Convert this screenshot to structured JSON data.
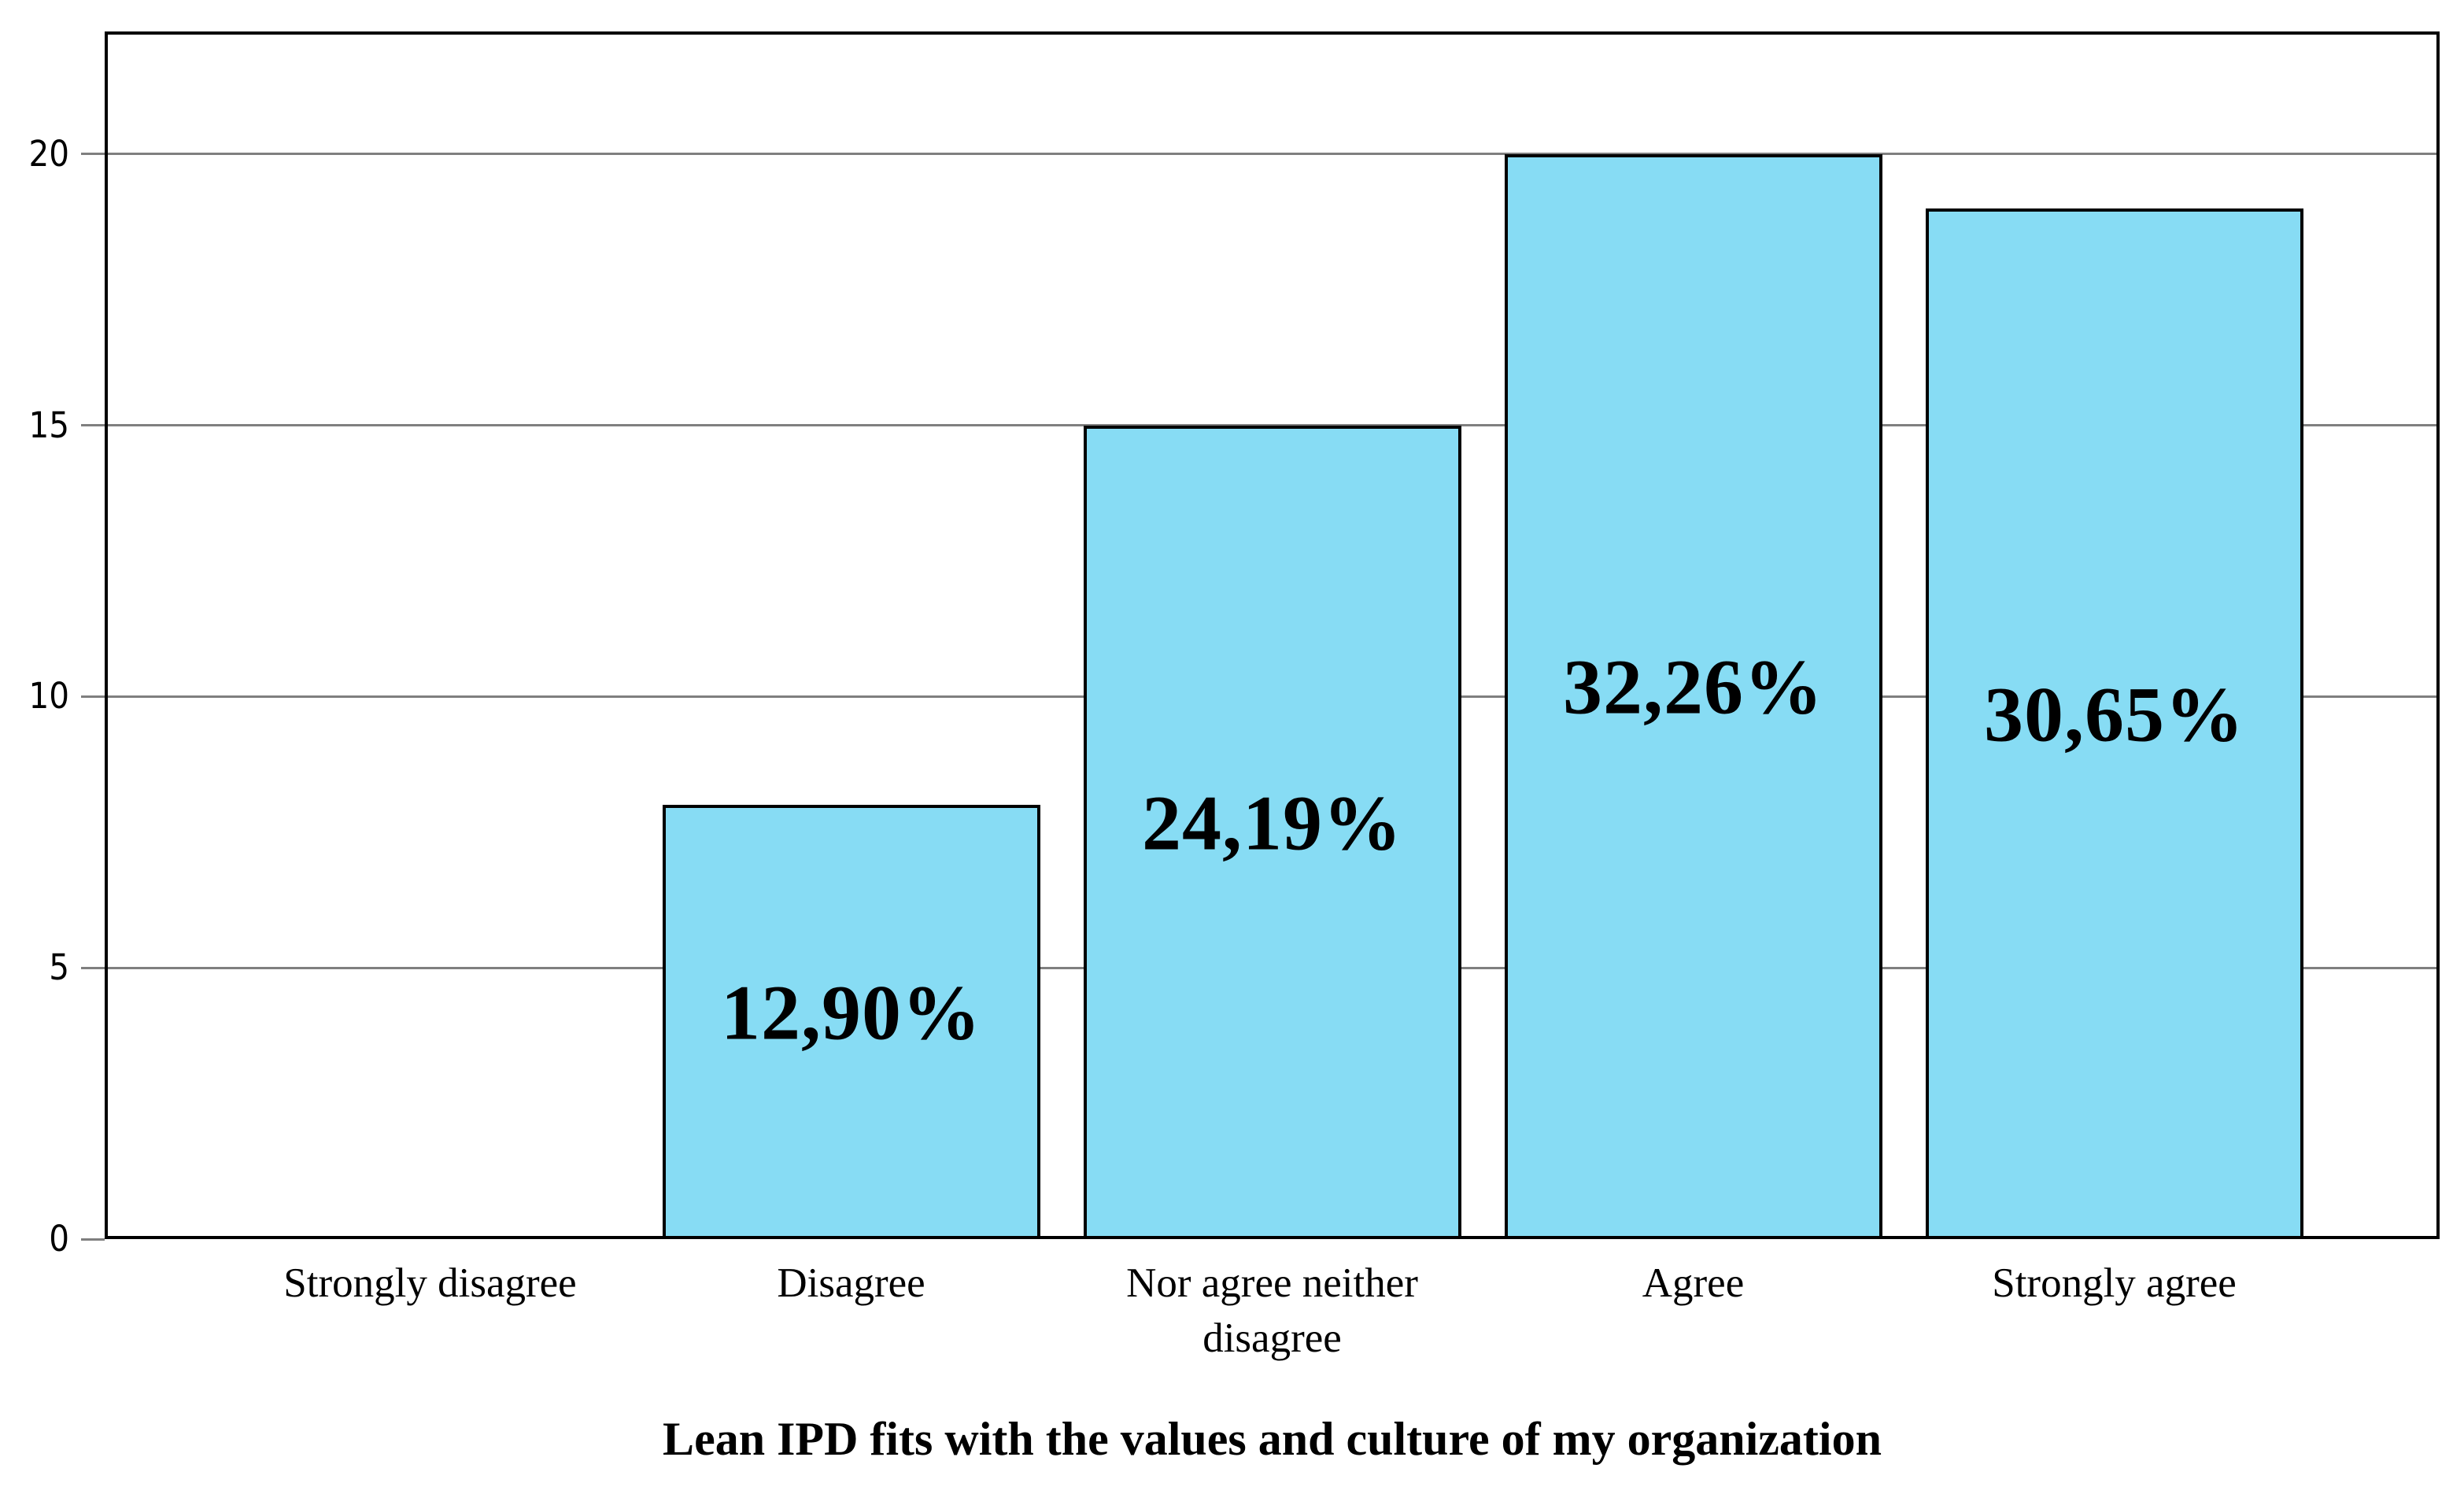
{
  "chart_data": {
    "type": "bar",
    "title": "Lean IPD fits with the values and culture of my organization",
    "categories": [
      "Strongly disagree",
      "Disagree",
      "Nor agree neither disagree",
      "Agree",
      "Strongly agree"
    ],
    "values": [
      0,
      8,
      15,
      20,
      19
    ],
    "bar_labels": [
      "",
      "12,90%",
      "24,19%",
      "32,26%",
      "30,65%"
    ],
    "y_ticks": [
      0,
      5,
      10,
      15,
      20
    ],
    "ylim": [
      0,
      22.26
    ],
    "xlabel": "",
    "ylabel": "",
    "grid": "horizontal-gray-behind-bars",
    "legend": "none",
    "colors": {
      "bar_fill": "#87DCF4",
      "bar_border": "#000000",
      "gridline": "#7F7F7F",
      "tick": "#7F7F7F",
      "frame": "#000000",
      "text": "#000000",
      "background": "#FFFFFF"
    }
  }
}
